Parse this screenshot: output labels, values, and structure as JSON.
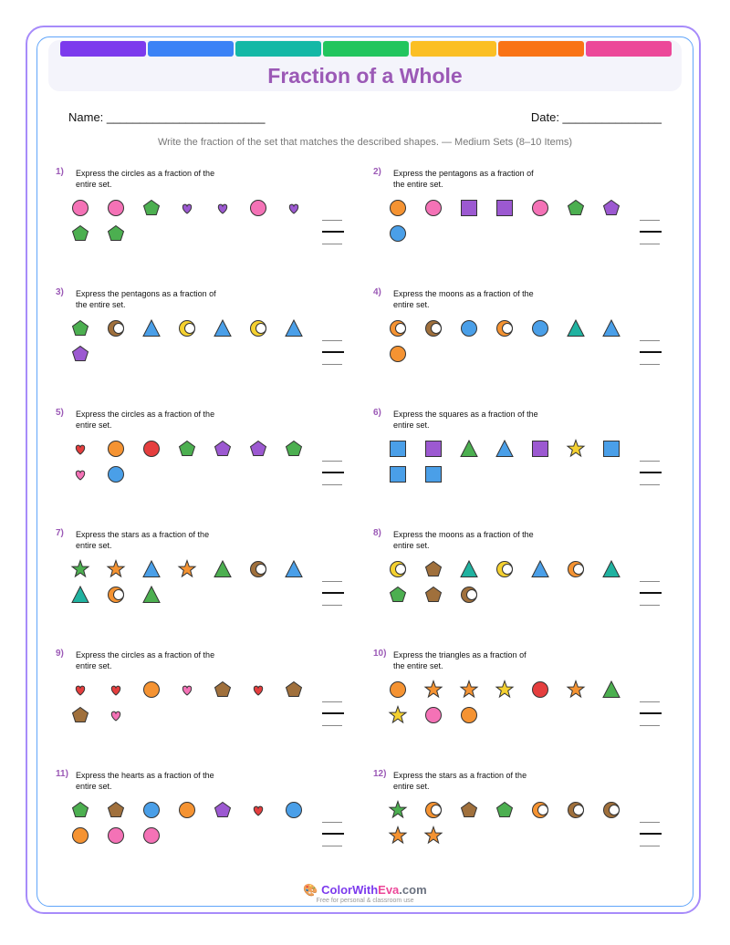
{
  "title": "Fraction of a Whole",
  "name_label": "Name: ________________________",
  "date_label": "Date: _______________",
  "instructions": "Write the fraction of the set that matches the described shapes. — Medium Sets (8–10 Items)",
  "colors": {
    "rainbow": [
      "#7c3aed",
      "#3b82f6",
      "#14b8a6",
      "#22c55e",
      "#fbbf24",
      "#f97316",
      "#ec4899"
    ],
    "pink": "#f472b6",
    "green": "#4caf50",
    "purple": "#9c59d1",
    "orange": "#f59332",
    "blue": "#4a9fe8",
    "brown": "#a0703c",
    "yellow": "#f5d130",
    "red": "#e53e3e",
    "teal": "#20b2a0",
    "darkred": "#dc3545"
  },
  "problems": [
    {
      "num": "1)",
      "text": "Express the circles as a fraction of the entire set.",
      "shapes": [
        [
          "circle",
          "pink"
        ],
        [
          "circle",
          "pink"
        ],
        [
          "pentagon",
          "green"
        ],
        [
          "heart",
          "purple"
        ],
        [
          "heart",
          "purple"
        ],
        [
          "circle",
          "pink"
        ],
        [
          "heart",
          "purple"
        ],
        [
          "pentagon",
          "green"
        ],
        [
          "pentagon",
          "green"
        ]
      ]
    },
    {
      "num": "2)",
      "text": "Express the pentagons as a fraction of the entire set.",
      "shapes": [
        [
          "circle",
          "orange"
        ],
        [
          "circle",
          "pink"
        ],
        [
          "square",
          "purple"
        ],
        [
          "square",
          "purple"
        ],
        [
          "circle",
          "pink"
        ],
        [
          "pentagon",
          "green"
        ],
        [
          "pentagon",
          "purple"
        ],
        [
          "circle",
          "blue"
        ]
      ]
    },
    {
      "num": "3)",
      "text": "Express the pentagons as a fraction of the entire set.",
      "shapes": [
        [
          "pentagon",
          "green"
        ],
        [
          "moon",
          "brown"
        ],
        [
          "triangle",
          "blue"
        ],
        [
          "moon",
          "yellow"
        ],
        [
          "triangle",
          "blue"
        ],
        [
          "moon",
          "yellow"
        ],
        [
          "triangle",
          "blue"
        ],
        [
          "pentagon",
          "purple"
        ]
      ]
    },
    {
      "num": "4)",
      "text": "Express the moons as a fraction of the entire set.",
      "shapes": [
        [
          "moon",
          "orange"
        ],
        [
          "moon",
          "brown"
        ],
        [
          "circle",
          "blue"
        ],
        [
          "moon",
          "orange"
        ],
        [
          "circle",
          "blue"
        ],
        [
          "triangle",
          "teal"
        ],
        [
          "triangle",
          "blue"
        ],
        [
          "circle",
          "orange"
        ]
      ]
    },
    {
      "num": "5)",
      "text": "Express the circles as a fraction of the entire set.",
      "shapes": [
        [
          "heart",
          "red"
        ],
        [
          "circle",
          "orange"
        ],
        [
          "circle",
          "red"
        ],
        [
          "pentagon",
          "green"
        ],
        [
          "pentagon",
          "purple"
        ],
        [
          "pentagon",
          "purple"
        ],
        [
          "pentagon",
          "green"
        ],
        [
          "heart",
          "pink"
        ],
        [
          "circle",
          "blue"
        ]
      ]
    },
    {
      "num": "6)",
      "text": "Express the squares as a fraction of the entire set.",
      "shapes": [
        [
          "square",
          "blue"
        ],
        [
          "square",
          "purple"
        ],
        [
          "triangle",
          "green"
        ],
        [
          "triangle",
          "blue"
        ],
        [
          "square",
          "purple"
        ],
        [
          "star",
          "yellow"
        ],
        [
          "square",
          "blue"
        ],
        [
          "square",
          "blue"
        ],
        [
          "square",
          "blue"
        ]
      ]
    },
    {
      "num": "7)",
      "text": "Express the stars as a fraction of the entire set.",
      "shapes": [
        [
          "star",
          "green"
        ],
        [
          "star",
          "orange"
        ],
        [
          "triangle",
          "blue"
        ],
        [
          "star",
          "orange"
        ],
        [
          "triangle",
          "green"
        ],
        [
          "moon",
          "brown"
        ],
        [
          "triangle",
          "blue"
        ],
        [
          "triangle",
          "teal"
        ],
        [
          "moon",
          "orange"
        ],
        [
          "triangle",
          "green"
        ]
      ]
    },
    {
      "num": "8)",
      "text": "Express the moons as a fraction of the entire set.",
      "shapes": [
        [
          "moon",
          "yellow"
        ],
        [
          "pentagon",
          "brown"
        ],
        [
          "triangle",
          "teal"
        ],
        [
          "moon",
          "yellow"
        ],
        [
          "triangle",
          "blue"
        ],
        [
          "moon",
          "orange"
        ],
        [
          "triangle",
          "teal"
        ],
        [
          "pentagon",
          "green"
        ],
        [
          "pentagon",
          "brown"
        ],
        [
          "moon",
          "brown"
        ]
      ]
    },
    {
      "num": "9)",
      "text": "Express the circles as a fraction of the entire set.",
      "shapes": [
        [
          "heart",
          "red"
        ],
        [
          "heart",
          "red"
        ],
        [
          "circle",
          "orange"
        ],
        [
          "heart",
          "pink"
        ],
        [
          "pentagon",
          "brown"
        ],
        [
          "heart",
          "red"
        ],
        [
          "pentagon",
          "brown"
        ],
        [
          "pentagon",
          "brown"
        ],
        [
          "heart",
          "pink"
        ]
      ]
    },
    {
      "num": "10)",
      "text": "Express the triangles as a fraction of the entire set.",
      "shapes": [
        [
          "circle",
          "orange"
        ],
        [
          "star",
          "orange"
        ],
        [
          "star",
          "orange"
        ],
        [
          "star",
          "yellow"
        ],
        [
          "circle",
          "red"
        ],
        [
          "star",
          "orange"
        ],
        [
          "triangle",
          "green"
        ],
        [
          "star",
          "yellow"
        ],
        [
          "circle",
          "pink"
        ],
        [
          "circle",
          "orange"
        ]
      ]
    },
    {
      "num": "11)",
      "text": "Express the hearts as a fraction of the entire set.",
      "shapes": [
        [
          "pentagon",
          "green"
        ],
        [
          "pentagon",
          "brown"
        ],
        [
          "circle",
          "blue"
        ],
        [
          "circle",
          "orange"
        ],
        [
          "pentagon",
          "purple"
        ],
        [
          "heart",
          "red"
        ],
        [
          "circle",
          "blue"
        ],
        [
          "circle",
          "orange"
        ],
        [
          "circle",
          "pink"
        ],
        [
          "circle",
          "pink"
        ]
      ]
    },
    {
      "num": "12)",
      "text": "Express the stars as a fraction of the entire set.",
      "shapes": [
        [
          "star",
          "green"
        ],
        [
          "moon",
          "orange"
        ],
        [
          "pentagon",
          "brown"
        ],
        [
          "pentagon",
          "green"
        ],
        [
          "moon",
          "orange"
        ],
        [
          "moon",
          "brown"
        ],
        [
          "moon",
          "brown"
        ],
        [
          "star",
          "orange"
        ],
        [
          "star",
          "orange"
        ]
      ]
    }
  ],
  "footer": {
    "brand_a": "Color",
    "brand_b": "With",
    "brand_c": "Eva",
    "brand_d": ".com",
    "tagline": "Free for personal & classroom use"
  }
}
